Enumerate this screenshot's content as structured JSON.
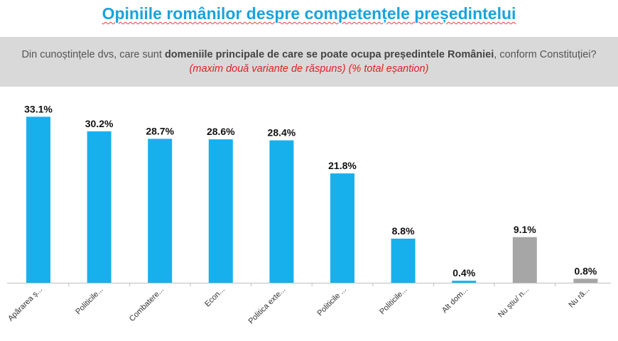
{
  "title": "Opiniile românilor despre competențele președintelui",
  "question": {
    "part1": "Din cunoștințele dvs, care sunt ",
    "bold": "domeniile principale de care se poate ocupa președintele României",
    "part2": ", conform Constituției? ",
    "note": "(maxim două variante de răspuns) (% total eșantion)"
  },
  "chart_data": {
    "type": "bar",
    "categories": [
      "Apărarea ș...",
      "Politicile...",
      "Combatere...",
      "Econ...",
      "Politica exte...",
      "Politicile ...",
      "Politicile...",
      "Alt dom...",
      "Nu știu/ n...",
      "Nu ră..."
    ],
    "values": [
      33.1,
      30.2,
      28.7,
      28.6,
      28.4,
      21.8,
      8.8,
      0.4,
      9.1,
      0.8
    ],
    "value_labels": [
      "33.1%",
      "30.2%",
      "28.7%",
      "28.6%",
      "28.4%",
      "21.8%",
      "8.8%",
      "0.4%",
      "9.1%",
      "0.8%"
    ],
    "colors": [
      "#17b0ec",
      "#17b0ec",
      "#17b0ec",
      "#17b0ec",
      "#17b0ec",
      "#17b0ec",
      "#17b0ec",
      "#17b0ec",
      "#a6a6a6",
      "#a6a6a6"
    ],
    "ylim": [
      0,
      34
    ],
    "grid": false,
    "legend": "none",
    "axis_color": "#bfbfbf"
  }
}
